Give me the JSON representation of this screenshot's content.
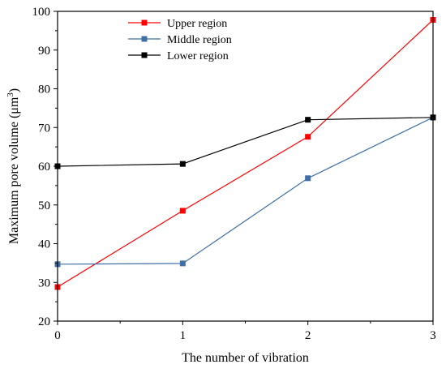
{
  "chart_data": {
    "type": "line",
    "xlabel": "The number of vibration",
    "ylabel_main": "Maximum pore volume (μm",
    "ylabel_sup": "3",
    "ylabel_close": ")",
    "x": [
      0,
      1,
      2,
      3
    ],
    "xlim": [
      0,
      3
    ],
    "ylim": [
      20,
      100
    ],
    "xticks": [
      "0",
      "1",
      "2",
      "3"
    ],
    "yticks": [
      "20",
      "30",
      "40",
      "50",
      "60",
      "70",
      "80",
      "90",
      "100"
    ],
    "grid": false,
    "legend_position": "top-center",
    "series": [
      {
        "name": "Upper region",
        "color": "#ff0000",
        "values": [
          28.8,
          48.5,
          67.6,
          97.8
        ]
      },
      {
        "name": "Middle region",
        "color": "#3f6fa6",
        "values": [
          34.7,
          34.9,
          56.9,
          72.6
        ]
      },
      {
        "name": "Lower region",
        "color": "#000000",
        "values": [
          60.0,
          60.6,
          72.0,
          72.6
        ]
      }
    ]
  }
}
